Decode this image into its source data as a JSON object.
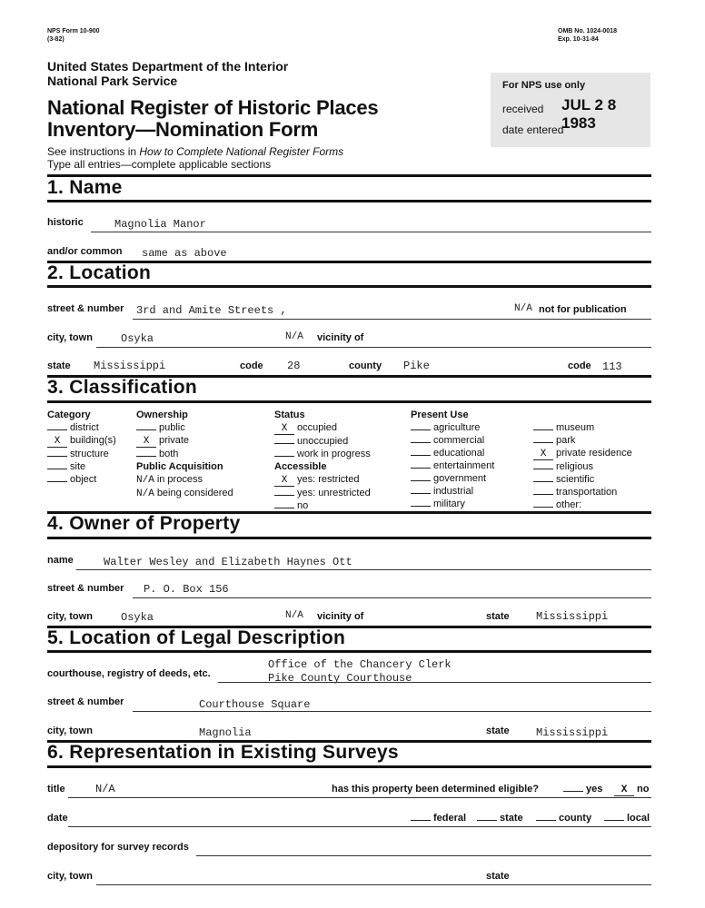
{
  "header": {
    "form_no": "NPS Form 10-900",
    "form_rev": "(3-82)",
    "omb": "OMB No. 1024-0018",
    "exp": "Exp. 10-31-84",
    "agency": "United States Department of the Interior",
    "service": "National Park Service",
    "title1": "National Register of Historic Places",
    "title2": "Inventory—Nomination Form",
    "instr_prefix": "See instructions in ",
    "instr_italic": "How to Complete National Register Forms",
    "instr2": "Type all entries—complete applicable sections"
  },
  "nps_box": {
    "heading": "For NPS use only",
    "received_label": "received",
    "received_stamp": "JUL 2 8 1983",
    "date_entered_label": "date entered"
  },
  "s1": {
    "heading": "1. Name",
    "historic_label": "historic",
    "historic": "Magnolia Manor",
    "common_label": "and/or common",
    "common": "same as above"
  },
  "s2": {
    "heading": "2. Location",
    "street_label": "street & number",
    "street": "3rd and Amite Streets ,",
    "nfp_value": "N/A",
    "nfp_label": "not for publication",
    "city_label": "city, town",
    "city": "Osyka",
    "vicinity_value": "N/A",
    "vicinity_label": "vicinity of",
    "state_label": "state",
    "state": "Mississippi",
    "code_label": "code",
    "code": "28",
    "county_label": "county",
    "county": "Pike",
    "county_code_label": "code",
    "county_code": "113"
  },
  "s3": {
    "heading": "3. Classification",
    "category": {
      "heading": "Category",
      "items": [
        {
          "mark": "",
          "label": "district"
        },
        {
          "mark": "X",
          "label": "building(s)"
        },
        {
          "mark": "",
          "label": "structure"
        },
        {
          "mark": "",
          "label": "site"
        },
        {
          "mark": "",
          "label": "object"
        }
      ]
    },
    "ownership": {
      "heading": "Ownership",
      "items": [
        {
          "mark": "",
          "label": "public"
        },
        {
          "mark": "X",
          "label": "private"
        },
        {
          "mark": "",
          "label": "both"
        }
      ]
    },
    "acquisition": {
      "heading": "Public Acquisition",
      "items": [
        {
          "mark": "N/A",
          "label": "in process"
        },
        {
          "mark": "N/A",
          "label": "being considered"
        }
      ]
    },
    "status": {
      "heading": "Status",
      "items": [
        {
          "mark": "X",
          "label": "occupied"
        },
        {
          "mark": "",
          "label": "unoccupied"
        },
        {
          "mark": "",
          "label": "work in progress"
        }
      ]
    },
    "accessible": {
      "heading": "Accessible",
      "items": [
        {
          "mark": "X",
          "label": "yes: restricted"
        },
        {
          "mark": "",
          "label": "yes: unrestricted"
        },
        {
          "mark": "",
          "label": "no"
        }
      ]
    },
    "present_use": {
      "heading": "Present Use",
      "col1": [
        {
          "mark": "",
          "label": "agriculture"
        },
        {
          "mark": "",
          "label": "commercial"
        },
        {
          "mark": "",
          "label": "educational"
        },
        {
          "mark": "",
          "label": "entertainment"
        },
        {
          "mark": "",
          "label": "government"
        },
        {
          "mark": "",
          "label": "industrial"
        },
        {
          "mark": "",
          "label": "military"
        }
      ],
      "col2": [
        {
          "mark": "",
          "label": "museum"
        },
        {
          "mark": "",
          "label": "park"
        },
        {
          "mark": "X",
          "label": "private residence"
        },
        {
          "mark": "",
          "label": "religious"
        },
        {
          "mark": "",
          "label": "scientific"
        },
        {
          "mark": "",
          "label": "transportation"
        },
        {
          "mark": "",
          "label": "other:"
        }
      ]
    }
  },
  "s4": {
    "heading": "4. Owner of Property",
    "name_label": "name",
    "name": "Walter Wesley and Elizabeth Haynes Ott",
    "street_label": "street & number",
    "street": "P. O. Box 156",
    "city_label": "city, town",
    "city": "Osyka",
    "vicinity_value": "N/A",
    "vicinity_label": "vicinity of",
    "state_label": "state",
    "state": "Mississippi"
  },
  "s5": {
    "heading": "5. Location of Legal Description",
    "courthouse_label": "courthouse, registry of deeds, etc.",
    "courthouse1": "Office of the Chancery Clerk",
    "courthouse2": "Pike County Courthouse",
    "street_label": "street & number",
    "street": "Courthouse Square",
    "city_label": "city, town",
    "city": "Magnolia",
    "state_label": "state",
    "state": "Mississippi"
  },
  "s6": {
    "heading": "6. Representation in Existing Surveys",
    "title_label": "title",
    "title": "N/A",
    "eligible_q": "has this property been determined eligible?",
    "yes_mark": "",
    "yes_label": "yes",
    "no_mark": "X",
    "no_label": "no",
    "date_label": "date",
    "federal": "federal",
    "state": "state",
    "county": "county",
    "local": "local",
    "depository_label": "depository for survey records",
    "city_label": "city, town",
    "state_label": "state"
  }
}
